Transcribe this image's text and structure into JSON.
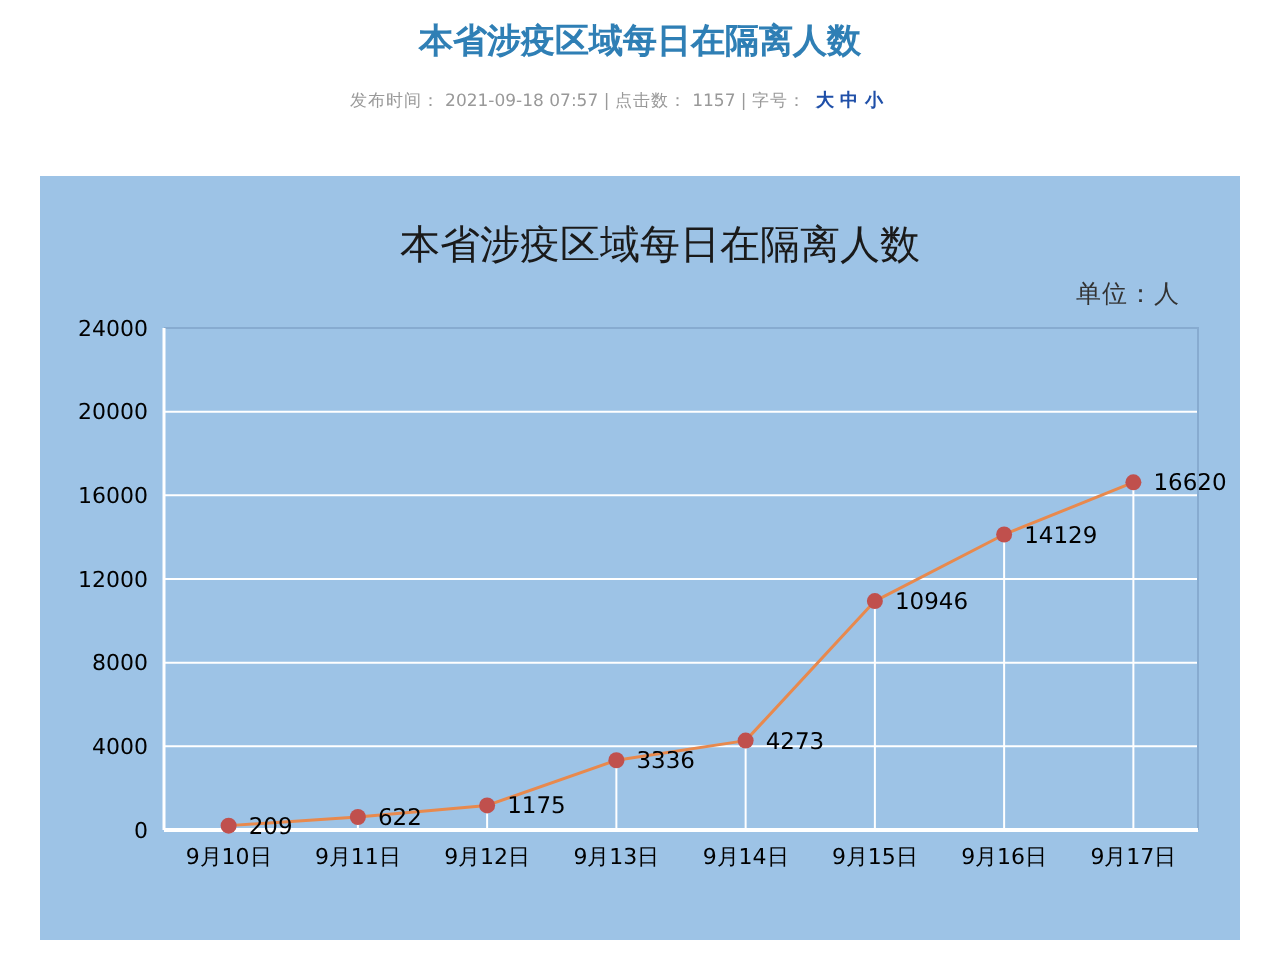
{
  "chart_data": {
    "type": "line",
    "title": "本省涉疫区域每日在隔离人数",
    "ylabel": "单位：人",
    "annotations": [
      "本省涉疫区域每日在隔离人数",
      "发布时间： 2021-09-18 07:57 | 点击数： 1157 | 字号：",
      "大 中 小"
    ],
    "categories": [
      "9月10日",
      "9月11日",
      "9月12日",
      "9月13日",
      "9月14日",
      "9月15日",
      "9月16日",
      "9月17日"
    ],
    "series": [
      {
        "color": "#e8894d",
        "colors": [
          "#c0504d",
          "#c0504d",
          "#c0504d",
          "#c0504d",
          "#c0504d",
          "#c0504d",
          "#c0504d",
          "#c0504d"
        ],
        "values": [
          209,
          622,
          1175,
          3336,
          4273,
          10946,
          14129,
          16620
        ]
      }
    ],
    "ylim": [
      0,
      24000
    ],
    "yticks": [
      0,
      4000,
      8000,
      12000,
      16000,
      20000,
      24000
    ],
    "grid": "y",
    "marker": "circle",
    "data_labels": true
  }
}
